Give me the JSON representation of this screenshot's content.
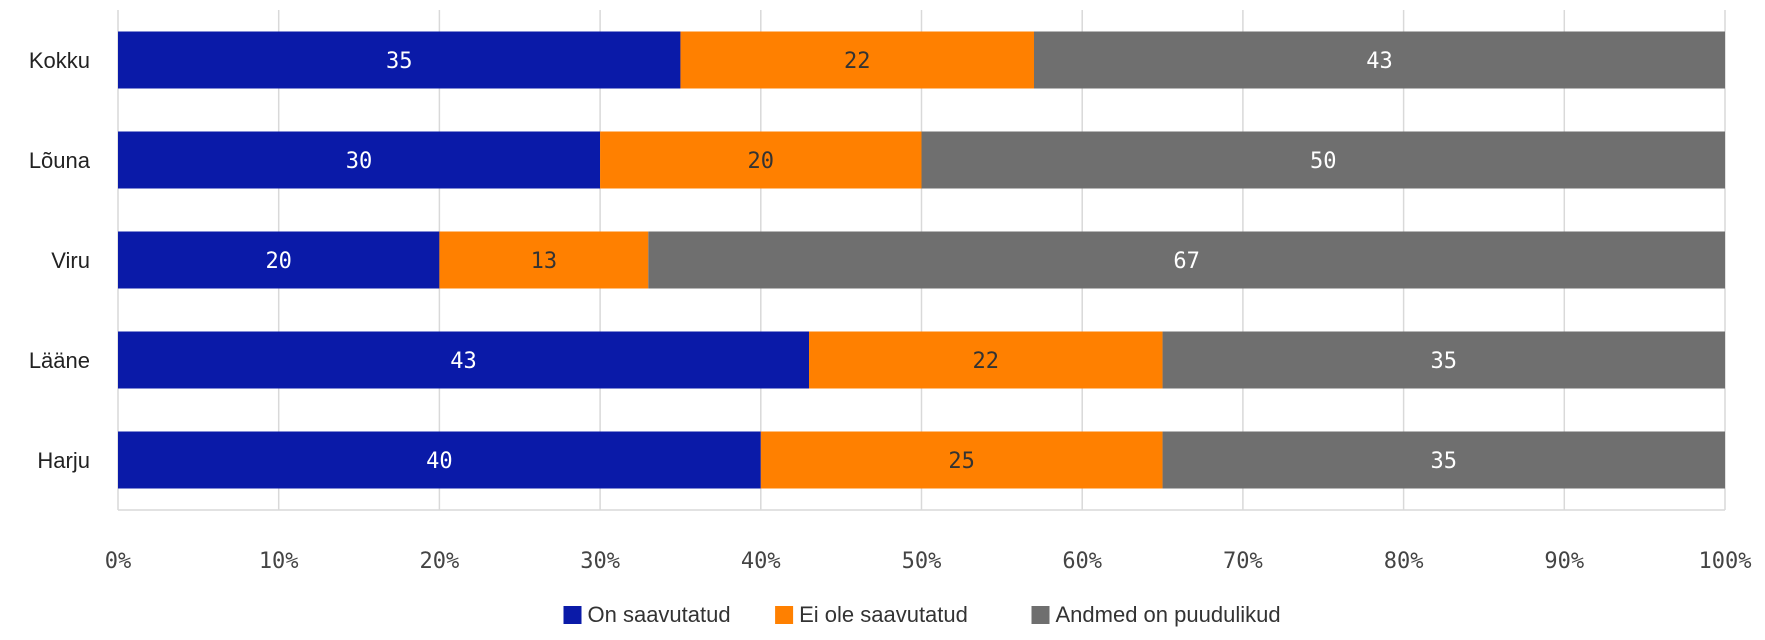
{
  "chart_data": {
    "type": "bar",
    "orientation": "horizontal",
    "stacked": "percent",
    "categories": [
      "Kokku",
      "Lõuna",
      "Viru",
      "Lääne",
      "Harju"
    ],
    "series": [
      {
        "name": "On saavutatud",
        "color": "#0a1aa8",
        "label_color": "#ffffff",
        "values": [
          35,
          30,
          20,
          43,
          40
        ]
      },
      {
        "name": "Ei ole saavutatud",
        "color": "#ff8000",
        "label_color": "#333333",
        "values": [
          22,
          20,
          13,
          22,
          25
        ]
      },
      {
        "name": "Andmed on puudulikud",
        "color": "#6f6f6f",
        "label_color": "#ffffff",
        "values": [
          43,
          50,
          67,
          35,
          35
        ]
      }
    ],
    "x_ticks": [
      "0%",
      "10%",
      "20%",
      "30%",
      "40%",
      "50%",
      "60%",
      "70%",
      "80%",
      "90%",
      "100%"
    ],
    "xlim": [
      0,
      100
    ],
    "grid": "vertical",
    "legend": "bottom"
  }
}
